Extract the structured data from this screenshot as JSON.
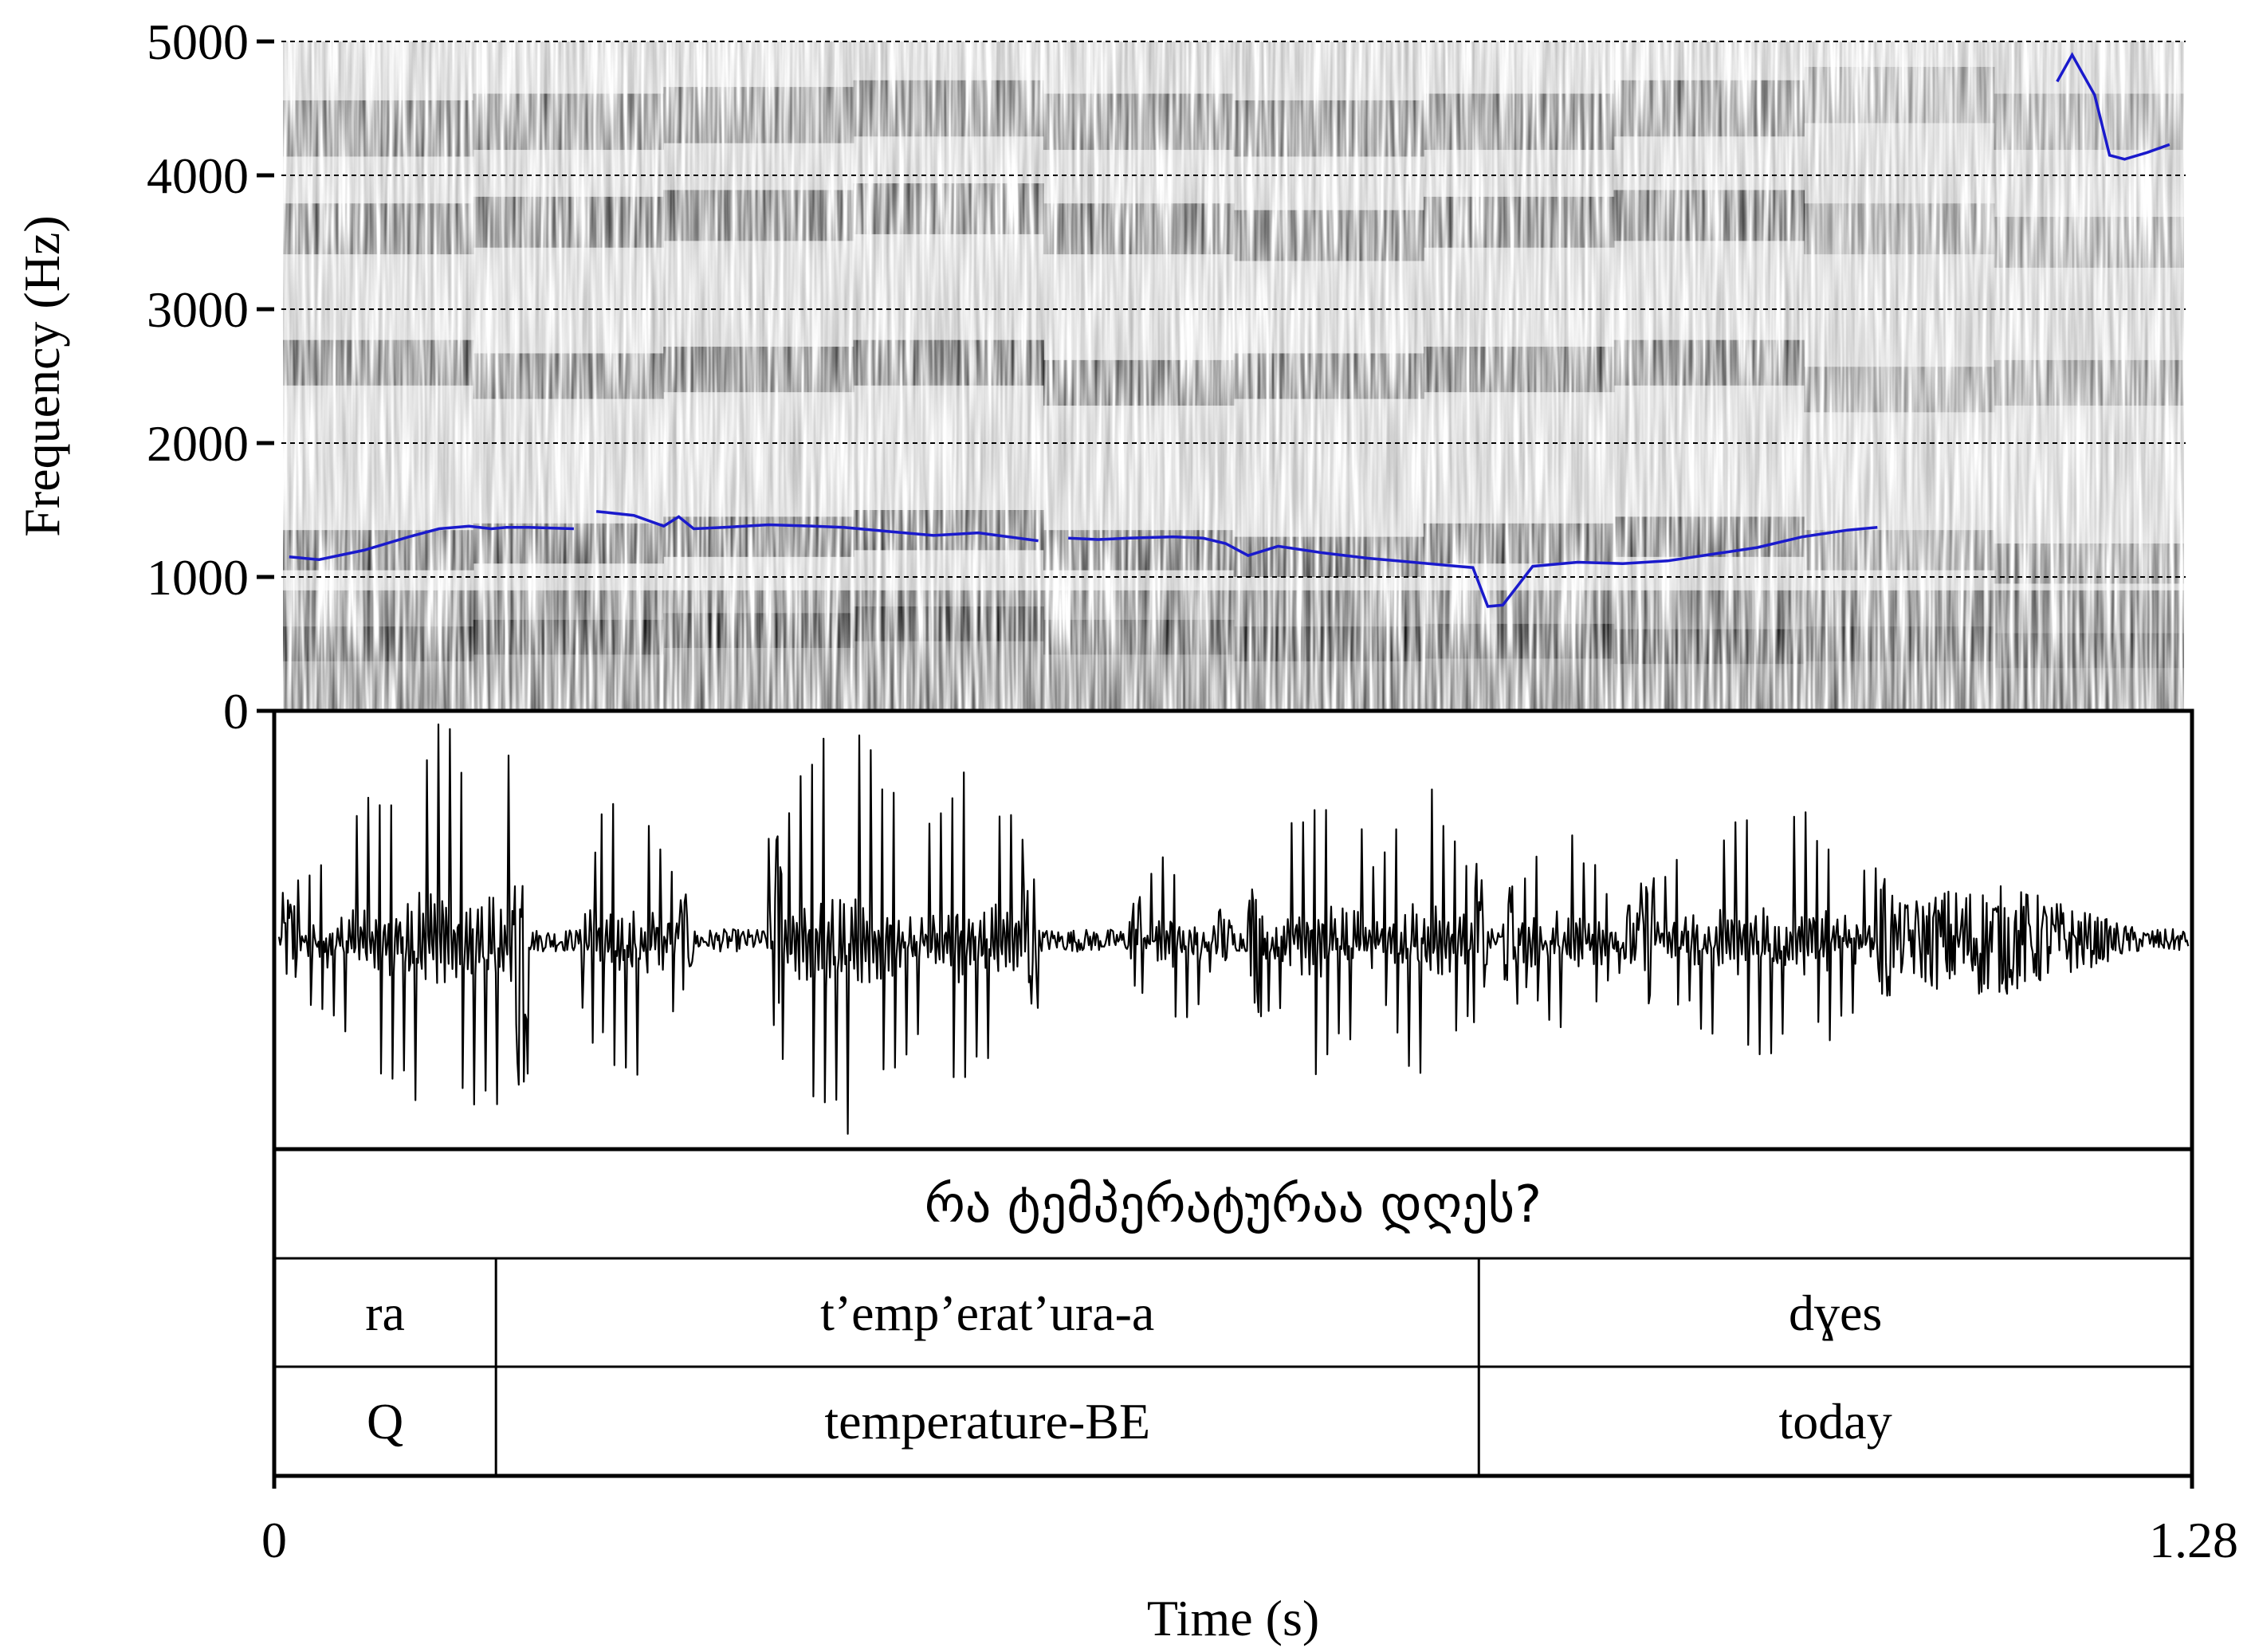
{
  "chart_data": [
    {
      "type": "spectrogram",
      "ylabel": "Frequency (Hz)",
      "ylim": [
        0,
        5000
      ],
      "yticks": [
        "0",
        "1000",
        "2000",
        "3000",
        "4000",
        "5000"
      ],
      "xlim": [
        0,
        1.28
      ],
      "gridlines_y": [
        1000,
        2000,
        3000,
        4000,
        5000
      ],
      "colors": {
        "pitch_track": "#1a1acc",
        "gray": "#000000"
      },
      "pitch_track_segments": [
        {
          "x": [
            0.01,
            0.03,
            0.06,
            0.09,
            0.11,
            0.13,
            0.145,
            0.155,
            0.17,
            0.2
          ],
          "y": [
            1150,
            1130,
            1200,
            1300,
            1360,
            1380,
            1360,
            1370,
            1370,
            1360
          ]
        },
        {
          "x": [
            0.215,
            0.24,
            0.26,
            0.27,
            0.28,
            0.3,
            0.33,
            0.36,
            0.38,
            0.41,
            0.44,
            0.47,
            0.49,
            0.51
          ],
          "y": [
            1490,
            1460,
            1380,
            1450,
            1360,
            1370,
            1390,
            1380,
            1370,
            1340,
            1310,
            1330,
            1300,
            1270
          ]
        },
        {
          "x": [
            0.53,
            0.55,
            0.57,
            0.6,
            0.62,
            0.635,
            0.65,
            0.67,
            0.7,
            0.73,
            0.76,
            0.79,
            0.8,
            0.81,
            0.82,
            0.84,
            0.87,
            0.9,
            0.93,
            0.96,
            0.99,
            1.02,
            1.05,
            1.07
          ],
          "y": [
            1290,
            1280,
            1290,
            1300,
            1290,
            1250,
            1160,
            1230,
            1180,
            1140,
            1110,
            1080,
            1070,
            780,
            790,
            1080,
            1110,
            1100,
            1120,
            1170,
            1220,
            1300,
            1350,
            1370
          ]
        },
        {
          "x": [
            1.19,
            1.2,
            1.205,
            1.215,
            1.225,
            1.235,
            1.25,
            1.265
          ],
          "y": [
            4700,
            4900,
            4800,
            4600,
            4150,
            4120,
            4170,
            4230
          ]
        }
      ],
      "formants": [
        {
          "name": "F1",
          "y": [
            500,
            550,
            600,
            650,
            550,
            500,
            520,
            480,
            500,
            450
          ]
        },
        {
          "name": "F2",
          "y": [
            1200,
            1250,
            1300,
            1350,
            1200,
            1150,
            1250,
            1300,
            1200,
            1100
          ]
        },
        {
          "name": "F3",
          "y": [
            2600,
            2500,
            2550,
            2600,
            2450,
            2500,
            2550,
            2600,
            2400,
            2450
          ]
        },
        {
          "name": "F4",
          "y": [
            3600,
            3650,
            3700,
            3750,
            3600,
            3550,
            3650,
            3700,
            3600,
            3500
          ]
        },
        {
          "name": "F5",
          "y": [
            4350,
            4400,
            4450,
            4500,
            4400,
            4350,
            4400,
            4500,
            4600,
            4400
          ]
        }
      ],
      "voicing_segments": [
        [
          0.0,
          0.2
        ],
        [
          0.215,
          0.51
        ],
        [
          0.53,
          1.07
        ]
      ]
    },
    {
      "type": "waveform",
      "xlim": [
        0,
        1.28
      ],
      "ylim": [
        -1,
        1
      ],
      "voiced_bursts": [
        {
          "x": [
            0.015,
            0.16
          ],
          "peak_at": 0.12,
          "amp": 0.95
        },
        {
          "x": [
            0.215,
            0.27
          ],
          "peak_at": 0.235,
          "amp": 0.72
        },
        {
          "x": [
            0.34,
            0.43
          ],
          "peak_at": 0.38,
          "amp": 0.98
        },
        {
          "x": [
            0.43,
            0.5
          ],
          "peak_at": 0.465,
          "amp": 0.8
        },
        {
          "x": [
            0.58,
            0.63
          ],
          "peak_at": 0.6,
          "amp": 0.42
        },
        {
          "x": [
            0.66,
            0.74
          ],
          "peak_at": 0.7,
          "amp": 0.66
        },
        {
          "x": [
            0.74,
            0.8
          ],
          "peak_at": 0.77,
          "amp": 0.7
        },
        {
          "x": [
            0.83,
            0.9
          ],
          "peak_at": 0.86,
          "amp": 0.46
        },
        {
          "x": [
            0.92,
            1.07
          ],
          "peak_at": 1.0,
          "amp": 0.6
        }
      ],
      "noise_level": 0.05,
      "fricative_segment": {
        "x": [
          1.08,
          1.26
        ],
        "amp": 0.25
      }
    }
  ],
  "annotation": {
    "sentence": "რა ტემპერატურაა დღეს?",
    "tiers": [
      {
        "name": "transcription",
        "intervals": [
          {
            "start": 0.0,
            "end": 0.148,
            "text": "ra"
          },
          {
            "start": 0.148,
            "end": 0.804,
            "text": "t’emp’erat’ura-a"
          },
          {
            "start": 0.804,
            "end": 1.28,
            "text": "dɣes"
          }
        ]
      },
      {
        "name": "gloss",
        "intervals": [
          {
            "start": 0.0,
            "end": 0.148,
            "text": "Q"
          },
          {
            "start": 0.148,
            "end": 0.804,
            "text": "temperature-BE"
          },
          {
            "start": 0.804,
            "end": 1.28,
            "text": "today"
          }
        ]
      }
    ]
  },
  "time_axis": {
    "xlabel": "Time (s)",
    "start_label": "0",
    "end_label": "1.28"
  }
}
